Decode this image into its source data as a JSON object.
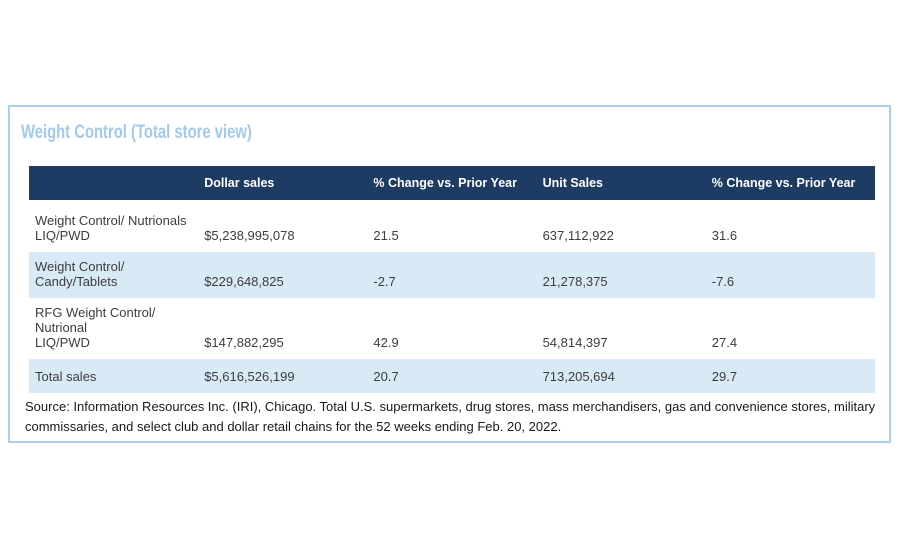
{
  "page": {
    "title": "Weight Control (Total store view)",
    "source_note": "Source: Information Resources Inc. (IRI), Chicago. Total U.S. supermarkets, drug stores, mass merchandisers, gas and convenience stores, military commissaries, and select club and dollar retail chains for the 52 weeks ending Feb. 20, 2022."
  },
  "colors": {
    "card_border": "#a9d1ef",
    "title_text": "#a3c9ed",
    "header_bg": "#1d3b63",
    "header_text": "#ffffff",
    "row_alt_bg": "#d8eaf6",
    "body_text": "#3d3d3d"
  },
  "chart_data": {
    "type": "table",
    "title": "Weight Control (Total store view)",
    "columns": [
      "",
      "Dollar sales",
      "% Change vs. Prior Year",
      "Unit Sales",
      "% Change vs. Prior Year"
    ],
    "rows": [
      [
        "Weight Control/ Nutrionals\nLIQ/PWD",
        "$5,238,995,078",
        "21.5",
        "637,112,922",
        "31.6"
      ],
      [
        "Weight Control/ Candy/Tablets",
        "$229,648,825",
        "-2.7",
        "21,278,375",
        "-7.6"
      ],
      [
        "RFG Weight Control/ Nutrional\nLIQ/PWD",
        "$147,882,295",
        "42.9",
        "54,814,397",
        "27.4"
      ],
      [
        "Total sales",
        "$5,616,526,199",
        "20.7",
        "713,205,694",
        "29.7"
      ]
    ],
    "layout": {
      "striped_row_indexes": [
        1,
        3
      ],
      "header_position": "top",
      "value_alignment": "left"
    }
  }
}
